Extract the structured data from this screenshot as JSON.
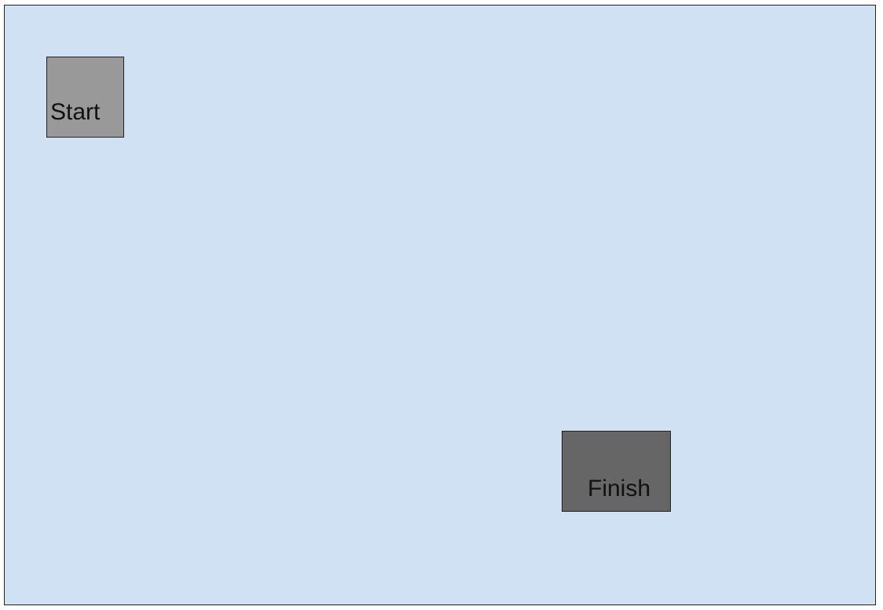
{
  "canvas": {
    "background": "#cfe1f2",
    "border_color": "#222222"
  },
  "start_box": {
    "label": "Start",
    "fill": "#999999"
  },
  "finish_box": {
    "label": "Finish",
    "fill": "#666666"
  }
}
